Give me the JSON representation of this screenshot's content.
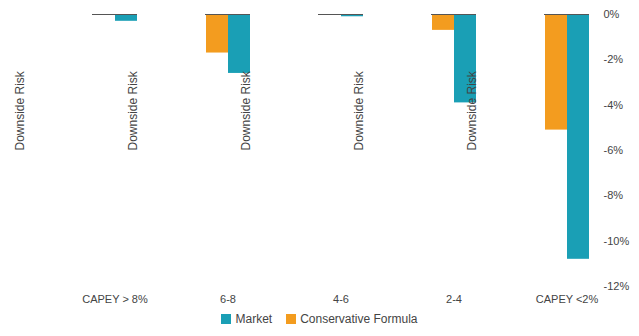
{
  "chart_data": {
    "type": "bar",
    "categories": [
      "CAPEY > 8%",
      "6-8",
      "4-6",
      "2-4",
      "CAPEY <2%"
    ],
    "series": [
      {
        "name": "Market",
        "color": "#1a9fb5",
        "values": [
          -0.3,
          -2.6,
          -0.1,
          -3.9,
          -10.8
        ]
      },
      {
        "name": "Conservative Formula",
        "color": "#f39c1f",
        "values": [
          0,
          -1.7,
          0,
          -0.7,
          -5.1
        ]
      }
    ],
    "y_label": "Downside Risk",
    "ylim": [
      -12,
      0
    ],
    "yticks": [
      {
        "value": 0,
        "label": "0%"
      },
      {
        "value": -2,
        "label": "-2%"
      },
      {
        "value": -4,
        "label": "-4%"
      },
      {
        "value": -6,
        "label": "-6%"
      },
      {
        "value": -8,
        "label": "-8%"
      },
      {
        "value": -10,
        "label": "-10%"
      },
      {
        "value": -12,
        "label": "-12%"
      }
    ],
    "grid": false,
    "legend": "bottom"
  }
}
